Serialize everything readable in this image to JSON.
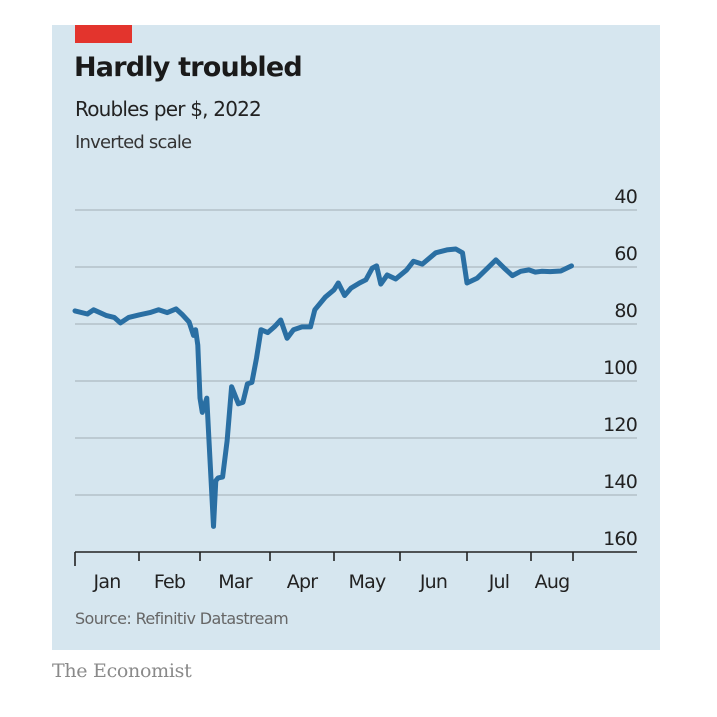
{
  "chart_data": {
    "type": "line",
    "title": "Hardly troubled",
    "subtitle": "Roubles per $, 2022",
    "note": "Inverted scale",
    "source": "Source: Refinitiv Datastream",
    "brand": "The Economist",
    "ylim": [
      40,
      160
    ],
    "y_inverted": true,
    "yticks": [
      40,
      60,
      80,
      100,
      120,
      140,
      160
    ],
    "ytick_labels": [
      "40",
      "60",
      "80",
      "100",
      "120",
      "140",
      "160"
    ],
    "xtick_labels": [
      "Jan",
      "Feb",
      "Mar",
      "Apr",
      "May",
      "Jun",
      "Jul",
      "Aug"
    ],
    "xlabel": "",
    "ylabel": "",
    "grid": true,
    "colors": {
      "accent": "#e3342d",
      "line": "#2a6fa3",
      "background": "#d6e6ef",
      "grid": "#b3c0c8"
    },
    "series": [
      {
        "name": "Roubles per $",
        "x_day_of_year": [
          1,
          7,
          10,
          16,
          20,
          23,
          27,
          32,
          37,
          41,
          45,
          49,
          52,
          55,
          57,
          58,
          59,
          60,
          61,
          63,
          64,
          66,
          67,
          68,
          70,
          72,
          74,
          77,
          79,
          81,
          83,
          85,
          87,
          90,
          93,
          96,
          99,
          102,
          106,
          110,
          112,
          117,
          121,
          123,
          126,
          129,
          133,
          136,
          139,
          141,
          143,
          146,
          150,
          155,
          158,
          162,
          168,
          173,
          177,
          180,
          182,
          187,
          192,
          196,
          200,
          204,
          208,
          212,
          215,
          218,
          222,
          227,
          232
        ],
        "values": [
          75.4,
          76.5,
          75,
          77,
          77.7,
          79.6,
          77.7,
          76.8,
          76,
          75,
          76,
          74.7,
          76.8,
          79.3,
          84,
          82,
          87.4,
          106,
          111,
          106,
          121,
          151,
          135,
          134,
          133.7,
          121,
          102,
          108,
          107.5,
          101,
          100.5,
          92,
          82,
          83,
          81,
          78.6,
          85,
          82,
          81,
          81,
          75,
          70.5,
          68,
          65.6,
          70,
          67.4,
          65.6,
          64.5,
          60.4,
          59.6,
          66,
          62.8,
          64.2,
          61,
          58,
          59,
          55,
          54,
          53.7,
          55,
          65.6,
          63.9,
          60.4,
          57.5,
          60.4,
          63,
          61.5,
          61,
          61.8,
          61.5,
          61.6,
          61.4,
          59.6
        ]
      }
    ]
  }
}
